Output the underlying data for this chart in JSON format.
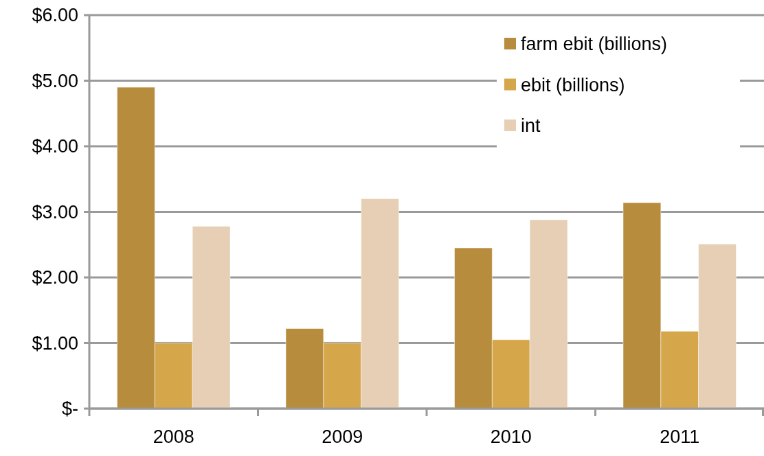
{
  "chart_data": {
    "type": "bar",
    "categories": [
      "2008",
      "2009",
      "2010",
      "2011"
    ],
    "series": [
      {
        "name": "farm ebit (billions)",
        "color": "#b78c3c",
        "values": [
          4.9,
          1.22,
          2.45,
          3.14
        ]
      },
      {
        "name": "ebit (billions)",
        "color": "#d6a64a",
        "values": [
          1.0,
          1.0,
          1.05,
          1.18
        ]
      },
      {
        "name": "int",
        "color": "#e6cfb4",
        "values": [
          2.78,
          3.2,
          2.88,
          2.51
        ]
      }
    ],
    "ylim": [
      0,
      6
    ],
    "yticks": [
      {
        "value": 0,
        "label": "$-"
      },
      {
        "value": 1,
        "label": "$1.00"
      },
      {
        "value": 2,
        "label": "$2.00"
      },
      {
        "value": 3,
        "label": "$3.00"
      },
      {
        "value": 4,
        "label": "$4.00"
      },
      {
        "value": 5,
        "label": "$5.00"
      },
      {
        "value": 6,
        "label": "$6.00"
      }
    ],
    "grid": "y",
    "legend": "top right"
  }
}
